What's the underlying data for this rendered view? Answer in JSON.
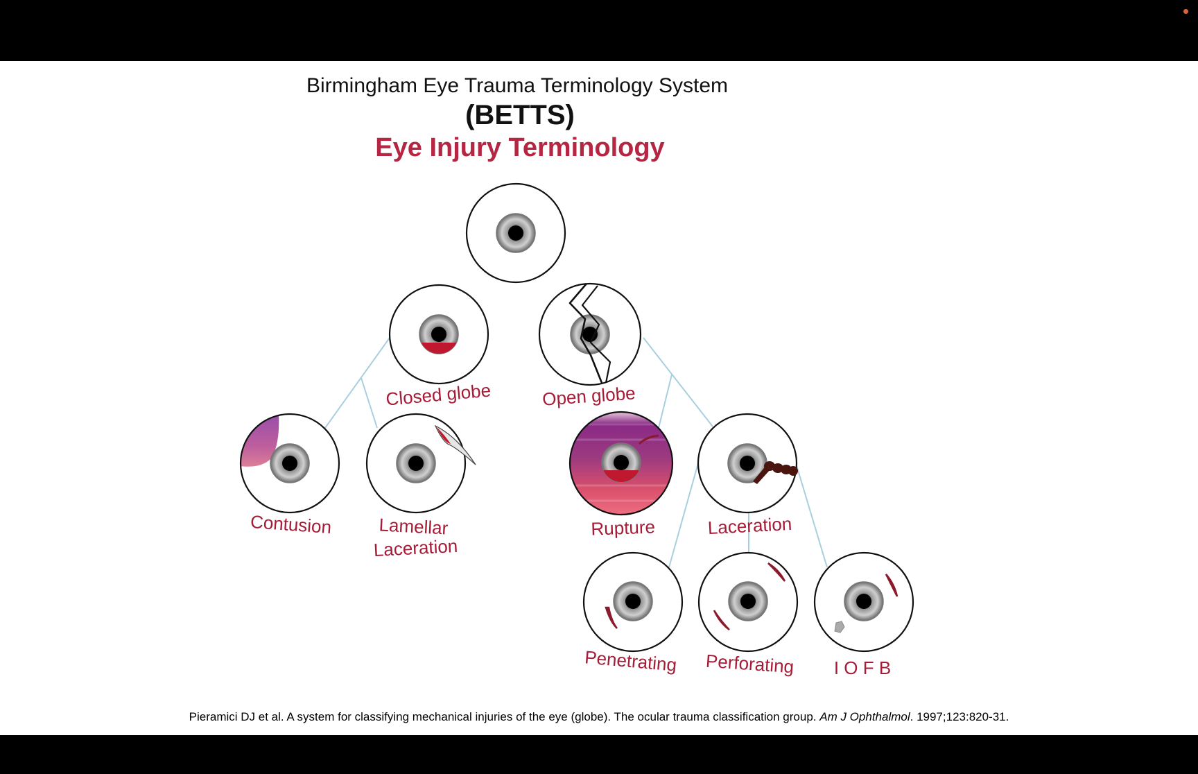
{
  "title_line1": "Birmingham Eye Trauma Terminology System",
  "title_line2": "(BETTS)",
  "subtitle": "Eye Injury Terminology",
  "nodes": {
    "closed_globe": "Closed globe",
    "open_globe": "Open globe",
    "contusion": "Contusion",
    "lamellar_line1": "Lamellar",
    "lamellar_line2": "Laceration",
    "rupture": "Rupture",
    "laceration": "Laceration",
    "penetrating": "Penetrating",
    "perforating": "Perforating",
    "iofb": "I O F B"
  },
  "citation": {
    "text": "Pieramici DJ et al. A system for classifying mechanical injuries of the eye (globe). The ocular trauma classification group. ",
    "journal": "Am J Ophthalmol",
    "tail": ". 1997;123:820-31."
  },
  "colors": {
    "label_red": "#a61b36",
    "subtitle_red": "#b52643",
    "connector": "#a9cfdf",
    "blood": "#c0182e"
  }
}
